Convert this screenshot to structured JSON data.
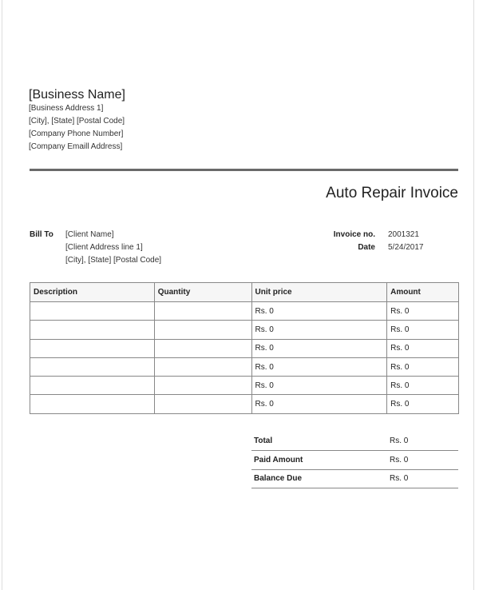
{
  "business": {
    "name": "[Business Name]",
    "lines": [
      "[Business Address 1]",
      "[City], [State] [Postal Code]",
      "[Company Phone Number]",
      "[Company Emaill Address]"
    ]
  },
  "title": "Auto Repair Invoice",
  "bill_to": {
    "label": "Bill To",
    "lines": [
      "[Client Name]",
      "[Client Address line 1]",
      "[City], [State] [Postal Code]"
    ]
  },
  "invoice": {
    "no_label": "Invoice no.",
    "no": "2001321",
    "date_label": "Date",
    "date": "5/24/2017"
  },
  "table": {
    "headers": [
      "Description",
      "Quantity",
      "Unit price",
      "Amount"
    ],
    "rows": [
      [
        "",
        "",
        "Rs. 0",
        "Rs. 0"
      ],
      [
        "",
        "",
        "Rs. 0",
        "Rs. 0"
      ],
      [
        "",
        "",
        "Rs. 0",
        "Rs. 0"
      ],
      [
        "",
        "",
        "Rs. 0",
        "Rs. 0"
      ],
      [
        "",
        "",
        "Rs. 0",
        "Rs. 0"
      ],
      [
        "",
        "",
        "Rs. 0",
        "Rs. 0"
      ]
    ]
  },
  "summary": [
    {
      "label": "Total",
      "value": "Rs. 0"
    },
    {
      "label": "Paid Amount",
      "value": "Rs. 0"
    },
    {
      "label": "Balance Due",
      "value": "Rs. 0"
    }
  ]
}
